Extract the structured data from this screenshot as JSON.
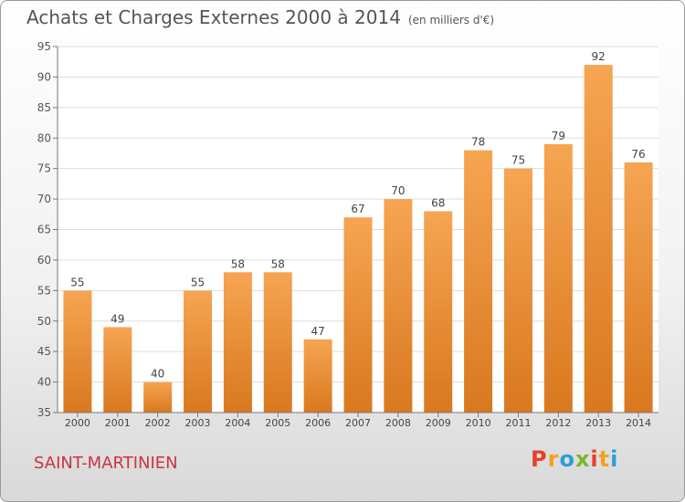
{
  "header": {
    "title": "Achats et Charges Externes 2000 à 2014",
    "unit": "(en milliers d'€)"
  },
  "location": "SAINT-MARTINIEN",
  "brand": {
    "letters": [
      "P",
      "r",
      "o",
      "x",
      "i",
      "t",
      "i"
    ],
    "colors": [
      "#e8402a",
      "#f4a21c",
      "#2a9fd8",
      "#7ab62a",
      "#e8402a",
      "#f4a21c",
      "#2a9fd8"
    ]
  },
  "colors": {
    "bar_top": "#f6a552",
    "bar_bottom": "#d9781f",
    "grid": "#dddddd"
  },
  "chart_data": {
    "type": "bar",
    "title": "Achats et Charges Externes 2000 à 2014",
    "categories": [
      "2000",
      "2001",
      "2002",
      "2003",
      "2004",
      "2005",
      "2006",
      "2007",
      "2008",
      "2009",
      "2010",
      "2011",
      "2012",
      "2013",
      "2014"
    ],
    "values": [
      55,
      49,
      40,
      55,
      58,
      58,
      47,
      67,
      70,
      68,
      78,
      75,
      79,
      92,
      76
    ],
    "ylim": [
      35,
      95
    ],
    "yticks": [
      35,
      40,
      45,
      50,
      55,
      60,
      65,
      70,
      75,
      80,
      85,
      90,
      95
    ],
    "grid": true,
    "data_labels": true
  }
}
